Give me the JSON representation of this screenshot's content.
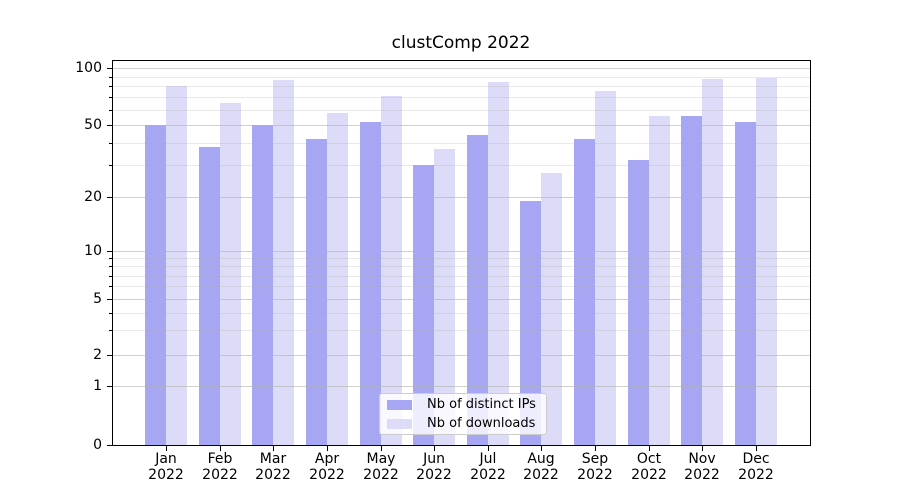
{
  "figure": {
    "background": "#ffffff",
    "spine_color": "#000000",
    "grid_major_color": "rgba(176,176,176,0.6)",
    "grid_minor_color": "rgba(176,176,176,0.28)"
  },
  "chart_data": {
    "type": "bar",
    "title": "clustComp 2022",
    "categories": [
      "Jan 2022",
      "Feb 2022",
      "Mar 2022",
      "Apr 2022",
      "May 2022",
      "Jun 2022",
      "Jul 2022",
      "Aug 2022",
      "Sep 2022",
      "Oct 2022",
      "Nov 2022",
      "Dec 2022"
    ],
    "series": [
      {
        "name": "Nb of distinct IPs",
        "color": "#a6a6f2",
        "values": [
          50,
          38,
          50,
          42,
          52,
          30,
          44,
          19,
          42,
          32,
          56,
          52
        ]
      },
      {
        "name": "Nb of downloads",
        "color": "#dcdcf8",
        "values": [
          80,
          65,
          86,
          58,
          71,
          37,
          84,
          27,
          76,
          56,
          87,
          89
        ]
      }
    ],
    "xlabel": "",
    "ylabel": "",
    "yscale": "symlog",
    "ylim": [
      0,
      110
    ],
    "y_major_ticks": [
      0,
      1,
      2,
      5,
      10,
      20,
      50,
      100
    ],
    "y_minor_ticks": [
      3,
      4,
      6,
      7,
      8,
      9,
      30,
      40,
      60,
      70,
      80,
      90
    ],
    "grid": true,
    "legend": {
      "position": "lower center",
      "entries": [
        "Nb of distinct IPs",
        "Nb of downloads"
      ]
    }
  }
}
